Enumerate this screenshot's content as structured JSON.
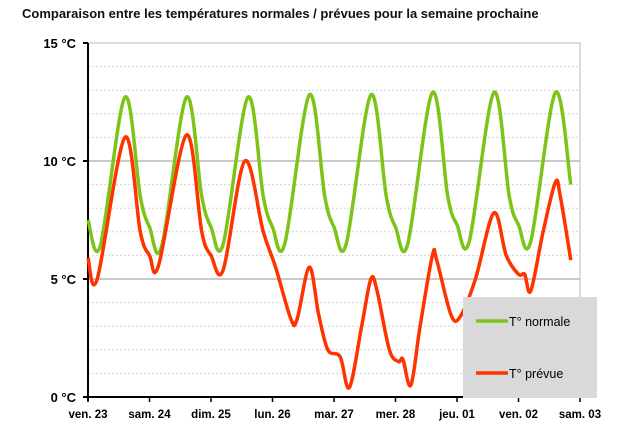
{
  "chart_data": {
    "type": "line",
    "title": "Comparaison entre les températures normales / prévues pour la semaine prochaine",
    "xlabel": "",
    "ylabel": "",
    "x_ticks": [
      "ven. 23",
      "sam. 24",
      "dim. 25",
      "lun. 26",
      "mar. 27",
      "mer. 28",
      "jeu. 01",
      "ven. 02",
      "sam. 03"
    ],
    "y_ticks": [
      {
        "v": 0,
        "label": "0 °C"
      },
      {
        "v": 5,
        "label": "5 °C"
      },
      {
        "v": 10,
        "label": "10 °C"
      },
      {
        "v": 15,
        "label": "15 °C"
      }
    ],
    "xlim": [
      0,
      8
    ],
    "ylim": [
      0,
      15
    ],
    "x_unit": "days from ven. 23",
    "grid": "horizontal, major every 5 °C, minor every 1 °C",
    "legend_placement": "bottom-right",
    "series": [
      {
        "name": "T° normale",
        "color": "#7cc417",
        "x": [
          0,
          0.2,
          0.6,
          0.85,
          1.0,
          1.2,
          1.6,
          1.85,
          2.0,
          2.2,
          2.6,
          2.85,
          3.0,
          3.2,
          3.6,
          3.85,
          4.0,
          4.2,
          4.6,
          4.85,
          5.0,
          5.2,
          5.6,
          5.85,
          6.0,
          6.2,
          6.6,
          6.85,
          7.0,
          7.2,
          7.6,
          7.85
        ],
        "y": [
          7.5,
          6.4,
          12.7,
          8.5,
          7.2,
          6.4,
          12.7,
          8.5,
          7.2,
          6.5,
          12.7,
          8.5,
          7.2,
          6.5,
          12.8,
          8.5,
          7.2,
          6.5,
          12.8,
          8.5,
          7.2,
          6.5,
          12.9,
          8.5,
          7.3,
          6.6,
          12.9,
          8.5,
          7.3,
          6.6,
          12.9,
          9.0
        ]
      },
      {
        "name": "T° prévue",
        "color": "#ff3300",
        "x": [
          0,
          0.15,
          0.6,
          0.85,
          1.0,
          1.15,
          1.6,
          1.85,
          2.0,
          2.2,
          2.55,
          2.85,
          3.05,
          3.3,
          3.4,
          3.6,
          3.75,
          3.9,
          4.1,
          4.25,
          4.45,
          4.6,
          4.7,
          4.9,
          5.05,
          5.12,
          5.25,
          5.4,
          5.6,
          5.67,
          5.9,
          6.05,
          6.3,
          6.6,
          6.8,
          7.0,
          7.1,
          7.2,
          7.4,
          7.6,
          7.68,
          7.85
        ],
        "y": [
          5.9,
          5.0,
          11.0,
          7.0,
          6.0,
          5.6,
          11.1,
          7.0,
          6.0,
          5.4,
          10.0,
          7.0,
          5.5,
          3.3,
          3.3,
          5.5,
          3.5,
          2.0,
          1.7,
          0.4,
          3.0,
          5.0,
          4.5,
          2.0,
          1.5,
          1.6,
          0.5,
          3.0,
          6.0,
          5.8,
          3.5,
          3.4,
          5.0,
          7.8,
          6.0,
          5.2,
          5.2,
          4.5,
          7.0,
          9.1,
          8.5,
          5.8
        ]
      }
    ]
  }
}
